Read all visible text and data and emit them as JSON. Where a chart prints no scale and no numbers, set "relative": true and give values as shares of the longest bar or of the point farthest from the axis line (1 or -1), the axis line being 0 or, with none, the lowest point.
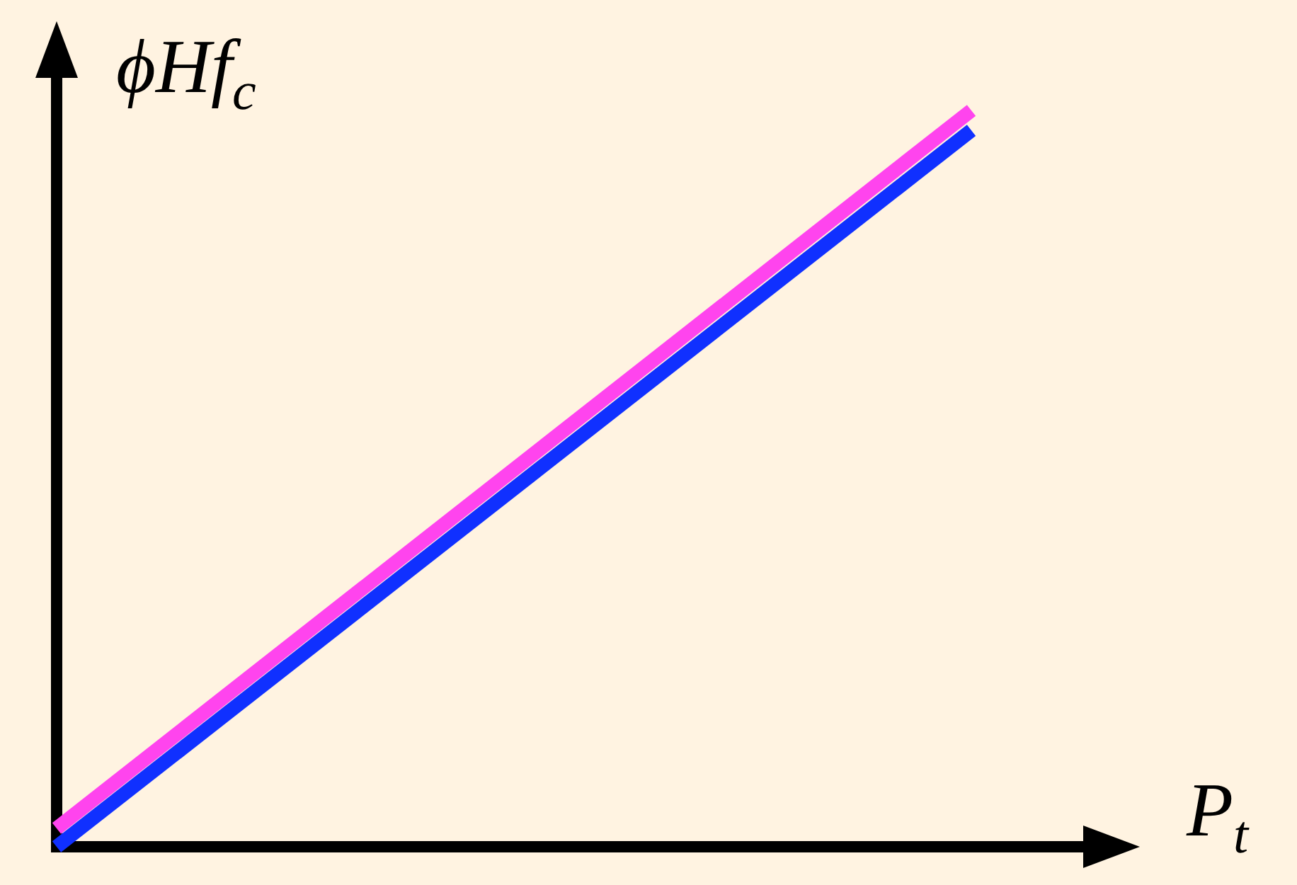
{
  "chart_data": {
    "type": "line",
    "relative": true,
    "xlabel": "P$_{t}$",
    "ylabel": "ϕHf$_{c}$",
    "categories": [
      null,
      null
    ],
    "marker": "none",
    "series": [
      {
        "color": "#ff44ee",
        "values": [
          0.025,
          1
        ]
      },
      {
        "color": "#1030ff",
        "values": [
          0,
          0.973
        ]
      }
    ]
  }
}
